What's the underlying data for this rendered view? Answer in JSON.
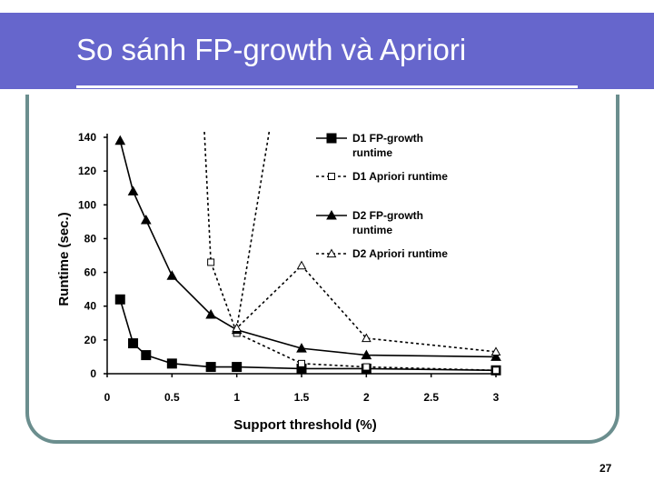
{
  "slide": {
    "title": "So sánh FP-growth và Apriori",
    "page_number": "27",
    "colors": {
      "title_bar": "#6666cc",
      "frame": "#6b8e8e"
    }
  },
  "chart_data": {
    "type": "line",
    "xlabel": "Support threshold (%)",
    "ylabel": "Runtime (sec.)",
    "xlim": [
      0,
      3
    ],
    "ylim": [
      0,
      140
    ],
    "x_ticks": [
      "0",
      "0.5",
      "1",
      "1.5",
      "2",
      "2.5",
      "3"
    ],
    "y_ticks": [
      "0",
      "20",
      "40",
      "60",
      "80",
      "100",
      "120",
      "140"
    ],
    "grid": false,
    "legend_position": "top-right",
    "series": [
      {
        "name": "D1 FP-growth runtime",
        "marker": "square-filled",
        "line": "solid",
        "x": [
          0.1,
          0.2,
          0.3,
          0.5,
          0.8,
          1.0,
          1.5,
          2.0,
          3.0
        ],
        "y": [
          44,
          18,
          11,
          6,
          4,
          4,
          3,
          3,
          2
        ]
      },
      {
        "name": "D1 Apriori runtime",
        "marker": "square-open",
        "line": "dotted",
        "x": [
          0.8,
          1.0,
          1.5,
          2.0,
          3.0
        ],
        "y": [
          66,
          24,
          6,
          4,
          2
        ],
        "above_range": [
          {
            "x": 0.75,
            "y": 140
          }
        ]
      },
      {
        "name": "D2 FP-growth runtime",
        "marker": "triangle-filled",
        "line": "solid",
        "x": [
          0.1,
          0.2,
          0.3,
          0.5,
          0.8,
          1.0,
          1.5,
          2.0,
          3.0
        ],
        "y": [
          138,
          108,
          91,
          58,
          35,
          26,
          15,
          11,
          10
        ]
      },
      {
        "name": "D2 Apriori runtime",
        "marker": "triangle-open",
        "line": "dotted",
        "x": [
          1.0,
          1.5,
          2.0,
          3.0
        ],
        "y": [
          27,
          64,
          21,
          13
        ],
        "above_range": [
          {
            "x": 1.25,
            "y": 140
          }
        ]
      }
    ]
  }
}
